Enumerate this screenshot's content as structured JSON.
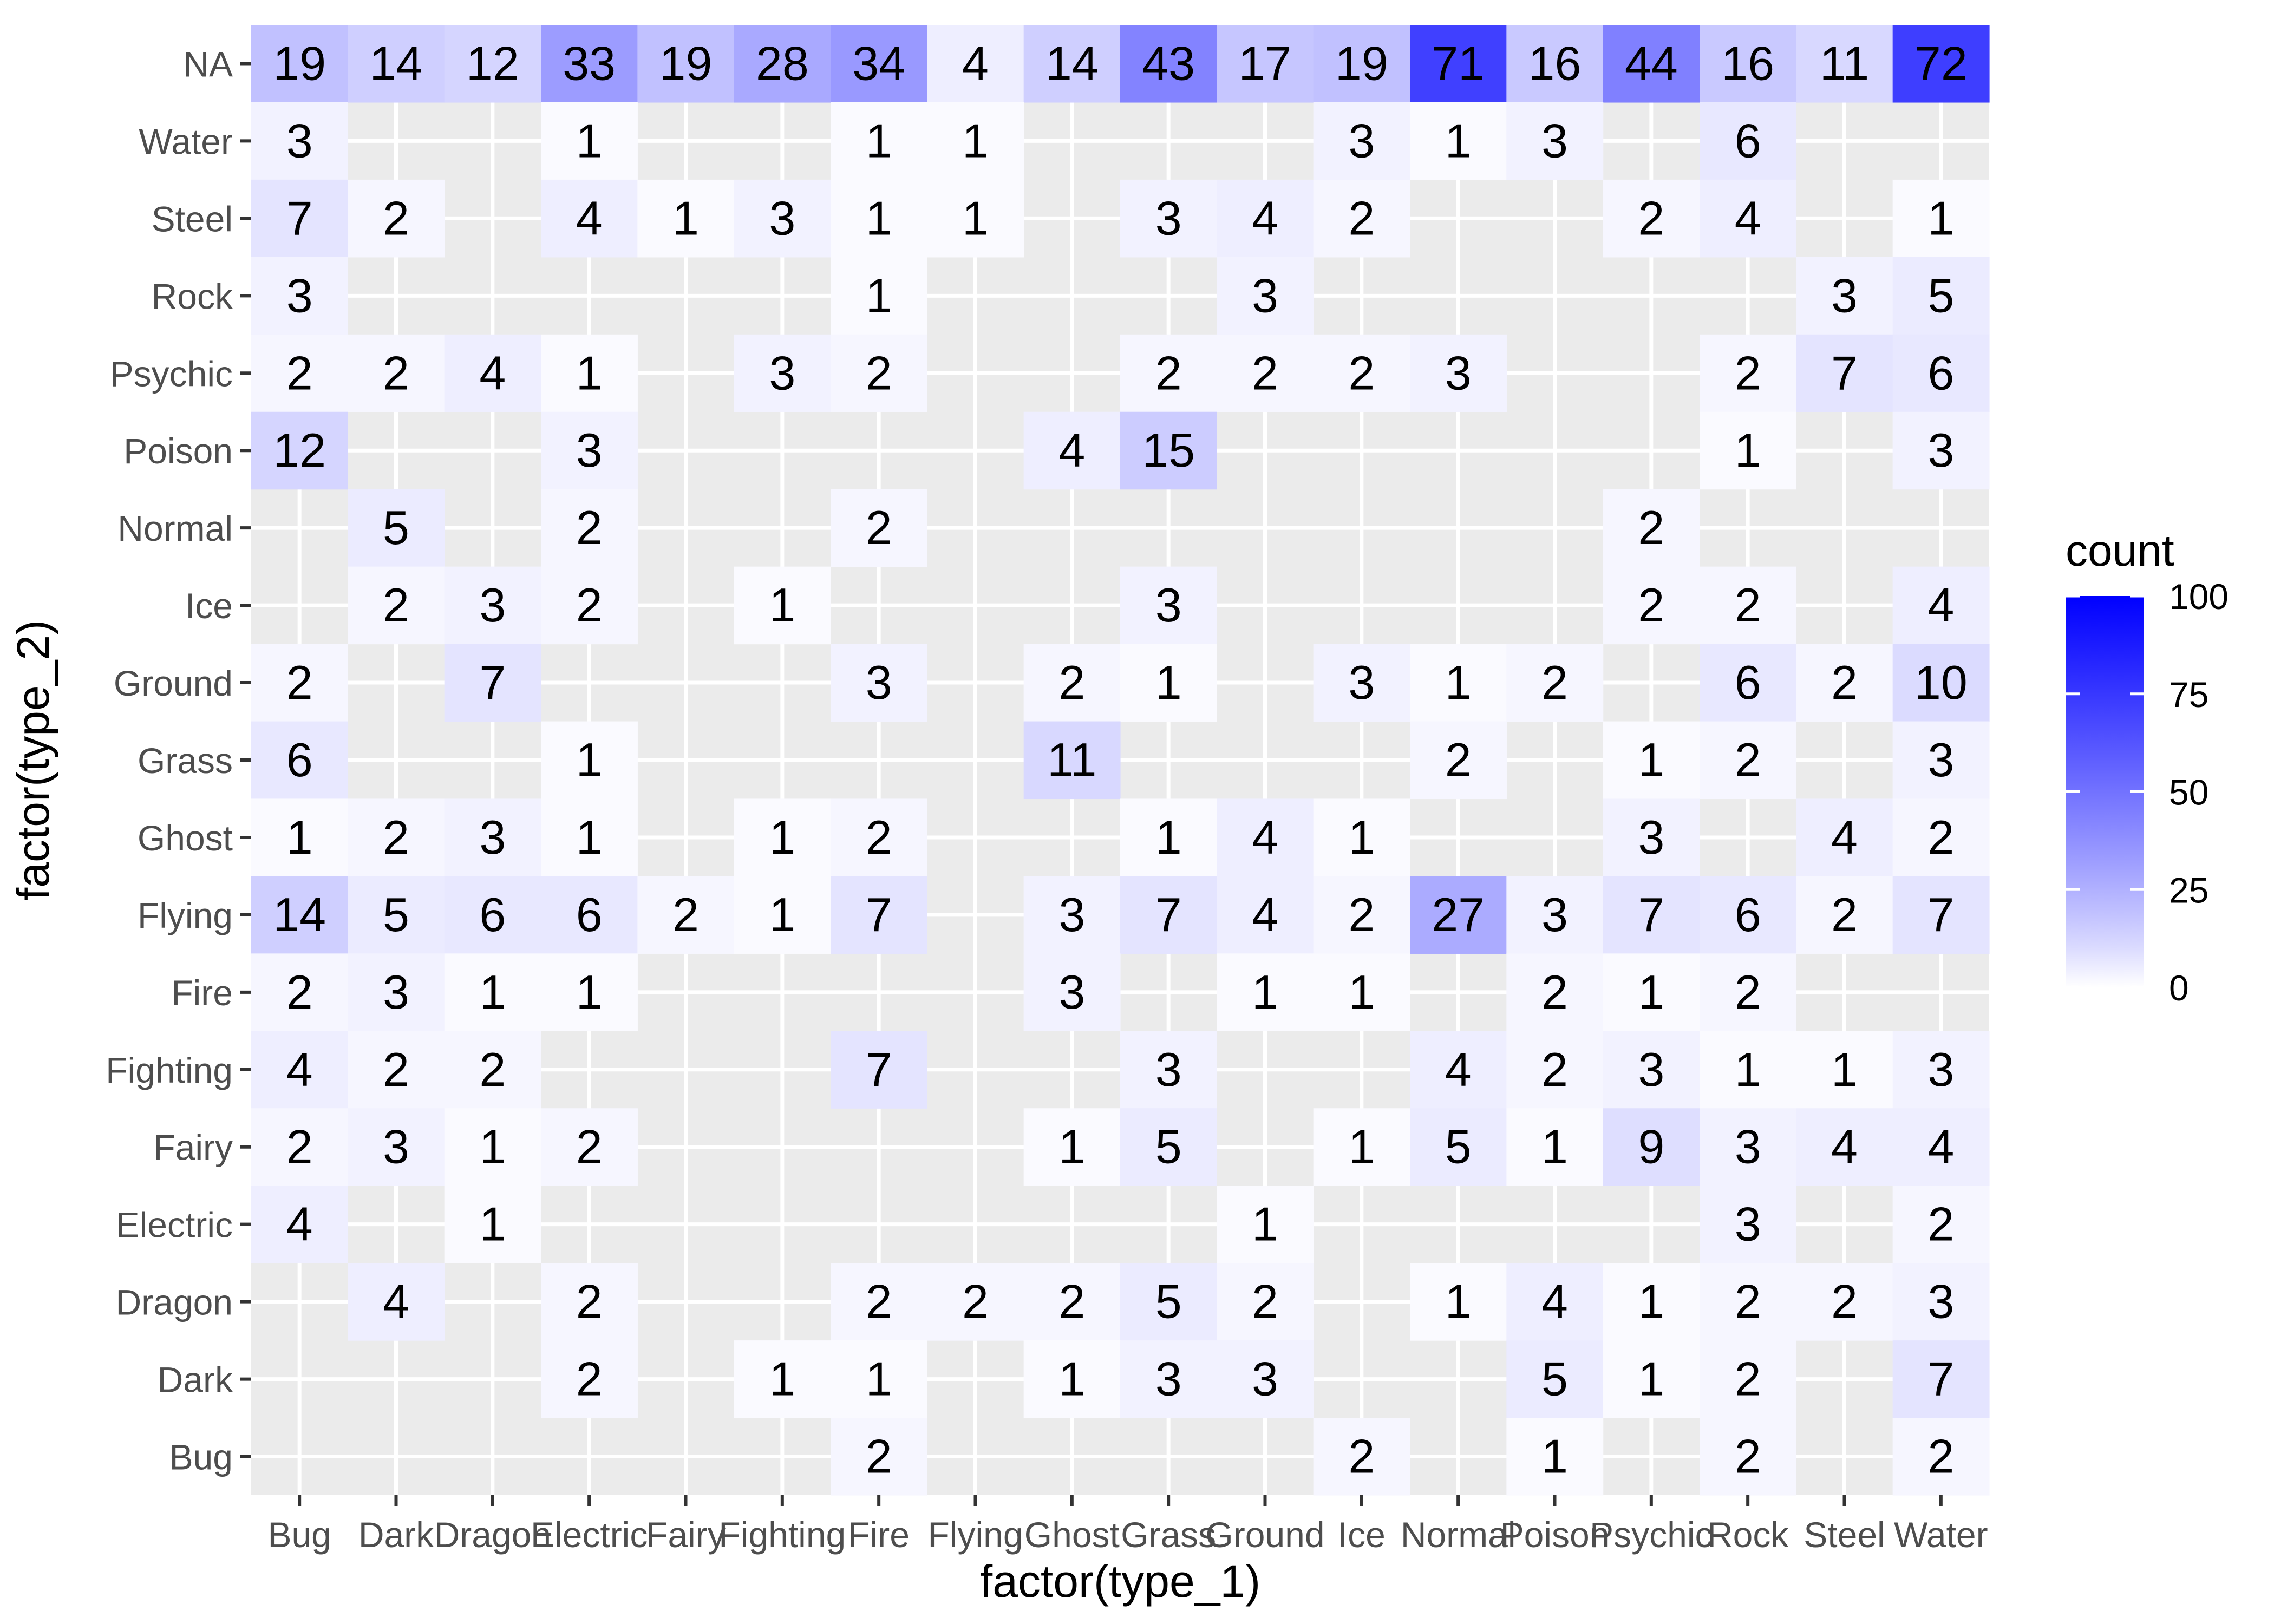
{
  "chart_data": {
    "type": "heatmap",
    "xlabel": "factor(type_1)",
    "ylabel": "factor(type_2)",
    "x_categories": [
      "Bug",
      "Dark",
      "Dragon",
      "Electric",
      "Fairy",
      "Fighting",
      "Fire",
      "Flying",
      "Ghost",
      "Grass",
      "Ground",
      "Ice",
      "Normal",
      "Poison",
      "Psychic",
      "Rock",
      "Steel",
      "Water"
    ],
    "y_categories": [
      "NA",
      "Water",
      "Steel",
      "Rock",
      "Psychic",
      "Poison",
      "Normal",
      "Ice",
      "Ground",
      "Grass",
      "Ghost",
      "Flying",
      "Fire",
      "Fighting",
      "Fairy",
      "Electric",
      "Dragon",
      "Dark",
      "Bug"
    ],
    "values": [
      [
        19,
        14,
        12,
        33,
        19,
        28,
        34,
        4,
        14,
        43,
        17,
        19,
        71,
        16,
        44,
        16,
        11,
        72
      ],
      [
        3,
        null,
        null,
        1,
        null,
        null,
        1,
        1,
        null,
        null,
        null,
        3,
        1,
        3,
        null,
        6,
        null,
        null
      ],
      [
        7,
        2,
        null,
        4,
        1,
        3,
        1,
        1,
        null,
        3,
        4,
        2,
        null,
        null,
        2,
        4,
        null,
        1
      ],
      [
        3,
        null,
        null,
        null,
        null,
        null,
        1,
        null,
        null,
        null,
        3,
        null,
        null,
        null,
        null,
        null,
        3,
        5
      ],
      [
        2,
        2,
        4,
        1,
        null,
        3,
        2,
        null,
        null,
        2,
        2,
        2,
        3,
        null,
        null,
        2,
        7,
        6
      ],
      [
        12,
        null,
        null,
        3,
        null,
        null,
        null,
        null,
        4,
        15,
        null,
        null,
        null,
        null,
        null,
        1,
        null,
        3
      ],
      [
        null,
        5,
        null,
        2,
        null,
        null,
        2,
        null,
        null,
        null,
        null,
        null,
        null,
        null,
        2,
        null,
        null,
        null
      ],
      [
        null,
        2,
        3,
        2,
        null,
        1,
        null,
        null,
        null,
        3,
        null,
        null,
        null,
        null,
        2,
        2,
        null,
        4
      ],
      [
        2,
        null,
        7,
        null,
        null,
        null,
        3,
        null,
        2,
        1,
        null,
        3,
        1,
        2,
        null,
        6,
        2,
        10
      ],
      [
        6,
        null,
        null,
        1,
        null,
        null,
        null,
        null,
        11,
        null,
        null,
        null,
        2,
        null,
        1,
        2,
        null,
        3
      ],
      [
        1,
        2,
        3,
        1,
        null,
        1,
        2,
        null,
        null,
        1,
        4,
        1,
        null,
        null,
        3,
        null,
        4,
        2
      ],
      [
        14,
        5,
        6,
        6,
        2,
        1,
        7,
        null,
        3,
        7,
        4,
        2,
        27,
        3,
        7,
        6,
        2,
        7
      ],
      [
        2,
        3,
        1,
        1,
        null,
        null,
        null,
        null,
        3,
        null,
        1,
        1,
        null,
        2,
        1,
        2,
        null,
        null
      ],
      [
        4,
        2,
        2,
        null,
        null,
        null,
        7,
        null,
        null,
        3,
        null,
        null,
        4,
        2,
        3,
        1,
        1,
        3
      ],
      [
        2,
        3,
        1,
        2,
        null,
        null,
        null,
        null,
        1,
        5,
        null,
        1,
        5,
        1,
        9,
        3,
        4,
        4
      ],
      [
        4,
        null,
        1,
        null,
        null,
        null,
        null,
        null,
        null,
        null,
        1,
        null,
        null,
        null,
        null,
        3,
        null,
        2
      ],
      [
        null,
        4,
        null,
        2,
        null,
        null,
        2,
        2,
        2,
        5,
        2,
        null,
        1,
        4,
        1,
        2,
        2,
        3
      ],
      [
        null,
        null,
        null,
        2,
        null,
        1,
        1,
        null,
        1,
        3,
        3,
        null,
        null,
        5,
        1,
        2,
        null,
        7
      ],
      [
        null,
        null,
        null,
        null,
        null,
        null,
        2,
        null,
        null,
        null,
        null,
        2,
        null,
        1,
        null,
        2,
        null,
        2
      ]
    ],
    "legend": {
      "title": "count",
      "min": 0,
      "max": 100,
      "ticks": [
        0,
        25,
        50,
        75,
        100
      ],
      "low_color": "#ffffff",
      "high_color": "#0000ff",
      "placement": "right"
    },
    "panel_background": "#ebebeb",
    "grid": true
  }
}
